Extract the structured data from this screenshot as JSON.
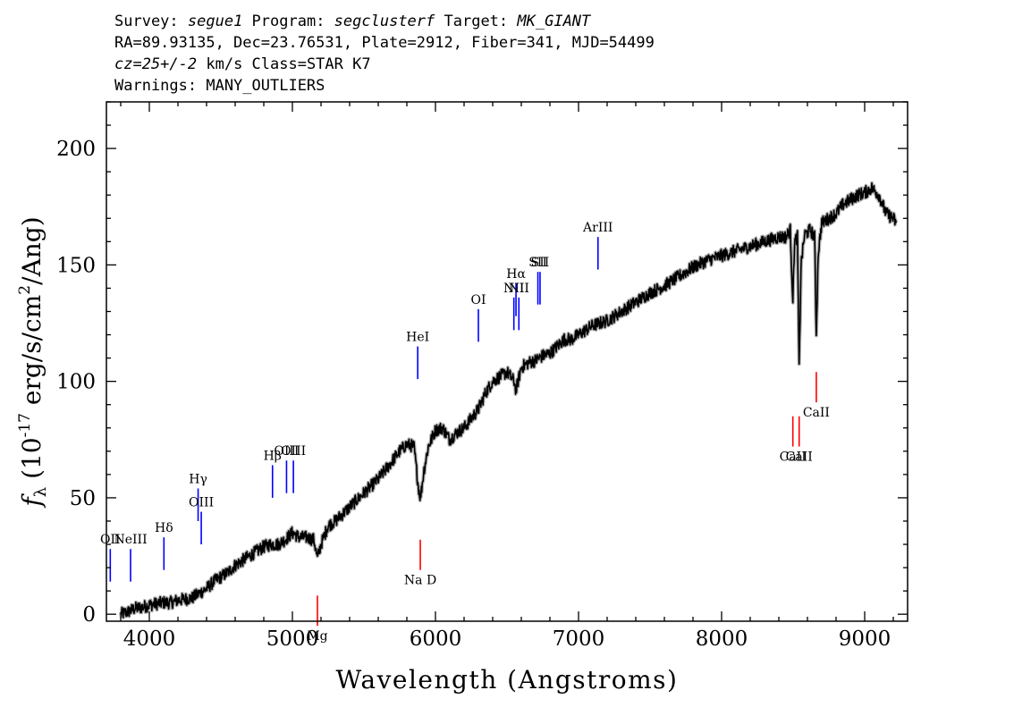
{
  "header": {
    "line1": {
      "survey_label": "Survey: ",
      "survey": "segue1",
      "program_label": " Program: ",
      "program": "segclusterf",
      "target_label": " Target: ",
      "target": "MK_GIANT"
    },
    "line2": "RA=89.93135, Dec=23.76531, Plate=2912, Fiber=341, MJD=54499",
    "line3": {
      "cz": "cz=25+/-2",
      "rest": " km/s Class=STAR K7"
    },
    "line4": "Warnings: MANY_OUTLIERS"
  },
  "chart_data": {
    "type": "line",
    "xlabel": "Wavelength (Angstroms)",
    "ylabel_parts": {
      "f": "f",
      "sub": "λ",
      "open": " (10",
      "exp1": "-17",
      "mid": " erg/s/cm",
      "exp2": "2",
      "end": "/Ang)"
    },
    "xlim": [
      3700,
      9300
    ],
    "ylim": [
      -3,
      220
    ],
    "x_ticks": [
      4000,
      5000,
      6000,
      7000,
      8000,
      9000
    ],
    "y_ticks": [
      0,
      50,
      100,
      150,
      200
    ],
    "colors": {
      "spectrum": "#000000",
      "error": "#b0b0b0",
      "emission": "#0000ff",
      "absorption": "#ff0000",
      "axis": "#000000"
    },
    "spectrum": [
      [
        3800,
        0
      ],
      [
        3850,
        1
      ],
      [
        3900,
        2.5
      ],
      [
        3950,
        3
      ],
      [
        4000,
        4
      ],
      [
        4050,
        4.5
      ],
      [
        4100,
        5
      ],
      [
        4150,
        5
      ],
      [
        4200,
        6
      ],
      [
        4250,
        6.5
      ],
      [
        4300,
        7
      ],
      [
        4350,
        9
      ],
      [
        4400,
        11
      ],
      [
        4450,
        14
      ],
      [
        4500,
        16
      ],
      [
        4550,
        18
      ],
      [
        4600,
        21
      ],
      [
        4650,
        23
      ],
      [
        4700,
        25
      ],
      [
        4750,
        27
      ],
      [
        4800,
        29
      ],
      [
        4850,
        30
      ],
      [
        4900,
        30
      ],
      [
        4950,
        32
      ],
      [
        5000,
        35
      ],
      [
        5050,
        33
      ],
      [
        5100,
        33
      ],
      [
        5150,
        32
      ],
      [
        5175,
        24
      ],
      [
        5200,
        30
      ],
      [
        5250,
        38
      ],
      [
        5300,
        40
      ],
      [
        5400,
        46
      ],
      [
        5500,
        52
      ],
      [
        5600,
        58
      ],
      [
        5700,
        66
      ],
      [
        5750,
        70
      ],
      [
        5800,
        73
      ],
      [
        5850,
        72
      ],
      [
        5880,
        55
      ],
      [
        5895,
        50
      ],
      [
        5920,
        62
      ],
      [
        5950,
        72
      ],
      [
        6000,
        79
      ],
      [
        6050,
        80
      ],
      [
        6100,
        75
      ],
      [
        6150,
        78
      ],
      [
        6200,
        80
      ],
      [
        6250,
        84
      ],
      [
        6300,
        88
      ],
      [
        6350,
        95
      ],
      [
        6400,
        100
      ],
      [
        6450,
        102
      ],
      [
        6500,
        104
      ],
      [
        6550,
        100
      ],
      [
        6563,
        96
      ],
      [
        6600,
        106
      ],
      [
        6650,
        108
      ],
      [
        6700,
        109
      ],
      [
        6750,
        111
      ],
      [
        6800,
        112
      ],
      [
        6850,
        115
      ],
      [
        6900,
        118
      ],
      [
        6950,
        118
      ],
      [
        7000,
        120
      ],
      [
        7100,
        124
      ],
      [
        7200,
        126
      ],
      [
        7300,
        130
      ],
      [
        7400,
        134
      ],
      [
        7500,
        138
      ],
      [
        7600,
        141
      ],
      [
        7700,
        145
      ],
      [
        7800,
        149
      ],
      [
        7900,
        152
      ],
      [
        8000,
        154
      ],
      [
        8100,
        156
      ],
      [
        8200,
        158
      ],
      [
        8300,
        160
      ],
      [
        8400,
        162
      ],
      [
        8450,
        162
      ],
      [
        8480,
        165
      ],
      [
        8498,
        135
      ],
      [
        8510,
        160
      ],
      [
        8530,
        162
      ],
      [
        8542,
        105
      ],
      [
        8555,
        150
      ],
      [
        8580,
        163
      ],
      [
        8620,
        165
      ],
      [
        8650,
        162
      ],
      [
        8662,
        120
      ],
      [
        8675,
        155
      ],
      [
        8700,
        168
      ],
      [
        8750,
        170
      ],
      [
        8800,
        172
      ],
      [
        8850,
        176
      ],
      [
        8900,
        178
      ],
      [
        8950,
        180
      ],
      [
        9000,
        181
      ],
      [
        9050,
        183
      ],
      [
        9100,
        180
      ],
      [
        9150,
        172
      ],
      [
        9200,
        170
      ],
      [
        9220,
        168
      ]
    ],
    "emission_lines": [
      {
        "label": "OII",
        "wavelength": 3727,
        "y": 14,
        "height": 14
      },
      {
        "label": "NeIII",
        "wavelength": 3869,
        "y": 14,
        "height": 14
      },
      {
        "label": "Hδ",
        "wavelength": 4102,
        "y": 19,
        "height": 14
      },
      {
        "label": "Hγ",
        "wavelength": 4341,
        "y": 40,
        "height": 14
      },
      {
        "label": "OIII",
        "wavelength": 4363,
        "y": 30,
        "height": 14
      },
      {
        "label": "Hβ",
        "wavelength": 4861,
        "y": 50,
        "height": 14
      },
      {
        "label": "OIII",
        "wavelength": 4959,
        "y": 52,
        "height": 14
      },
      {
        "label": "OIII",
        "wavelength": 5007,
        "y": 52,
        "height": 14
      },
      {
        "label": "HeI",
        "wavelength": 5876,
        "y": 101,
        "height": 14
      },
      {
        "label": "OI",
        "wavelength": 6300,
        "y": 117,
        "height": 14
      },
      {
        "label": "NII",
        "wavelength": 6548,
        "y": 122,
        "height": 14
      },
      {
        "label": "Hα",
        "wavelength": 6563,
        "y": 128,
        "height": 14
      },
      {
        "label": "NII",
        "wavelength": 6583,
        "y": 122,
        "height": 14
      },
      {
        "label": "SII",
        "wavelength": 6716,
        "y": 133,
        "height": 14
      },
      {
        "label": "SII",
        "wavelength": 6731,
        "y": 133,
        "height": 14
      },
      {
        "label": "ArIII",
        "wavelength": 7136,
        "y": 148,
        "height": 14
      }
    ],
    "absorption_lines": [
      {
        "label": "Mg",
        "wavelength": 5175,
        "y": 8,
        "height": 13
      },
      {
        "label": "Na D",
        "wavelength": 5894,
        "y": 32,
        "height": 13
      },
      {
        "label": "CaII",
        "wavelength": 8498,
        "y": 85,
        "height": 13
      },
      {
        "label": "CaII",
        "wavelength": 8542,
        "y": 85,
        "height": 13
      },
      {
        "label": "CaII",
        "wavelength": 8662,
        "y": 104,
        "height": 13
      }
    ]
  }
}
